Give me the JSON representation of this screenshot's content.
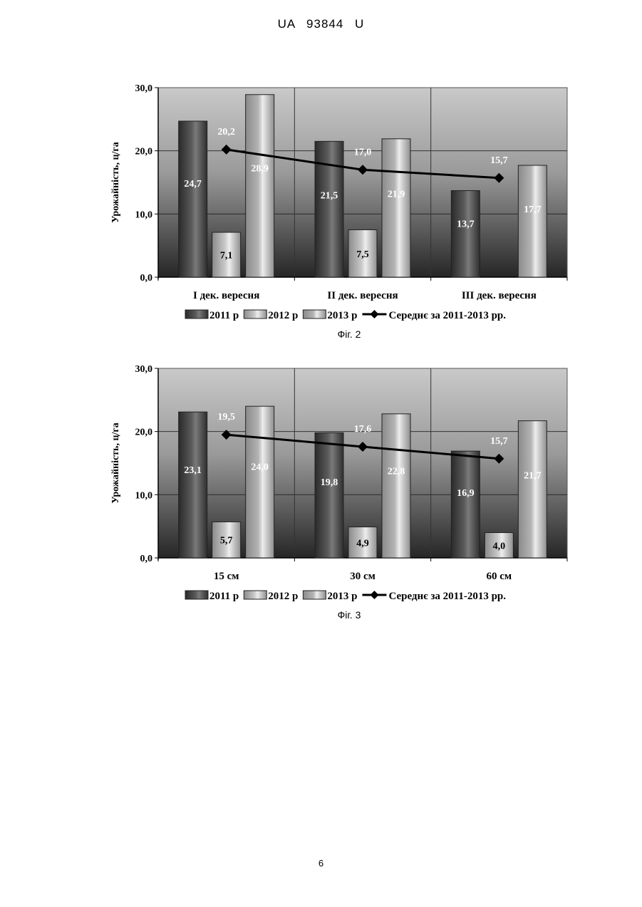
{
  "document": {
    "header": "UA 93844 U",
    "page_number": "6"
  },
  "chart_data": [
    {
      "type": "bar",
      "caption": "Фіг. 2",
      "ylabel": "Урожайність, ц/га",
      "ylim": [
        0,
        30
      ],
      "yticks": [
        "0,0",
        "10,0",
        "20,0",
        "30,0"
      ],
      "categories": [
        "I дек. вересня",
        "II дек. вересня",
        "III дек. вересня"
      ],
      "series": [
        {
          "name": "2011 р",
          "kind": "bar",
          "color": "#5a5a5a",
          "values": [
            24.7,
            21.5,
            13.7
          ],
          "labels": [
            "24,7",
            "21,5",
            "13,7"
          ]
        },
        {
          "name": "2012 р",
          "kind": "bar",
          "color": "#c8c8c8",
          "values": [
            7.1,
            7.5,
            null
          ],
          "labels": [
            "7,1",
            "7,5",
            ""
          ]
        },
        {
          "name": "2013 р",
          "kind": "bar",
          "color": "#b4b4b4",
          "values": [
            28.9,
            21.9,
            17.7
          ],
          "labels": [
            "28,9",
            "21,9",
            "17,7"
          ]
        },
        {
          "name": "Середнє за 2011-2013 рр.",
          "kind": "line",
          "color": "#000000",
          "values": [
            20.2,
            17.0,
            15.7
          ],
          "labels": [
            "20,2",
            "17,0",
            "15,7"
          ]
        }
      ],
      "grid": true,
      "legend": "bottom"
    },
    {
      "type": "bar",
      "caption": "Фіг. 3",
      "ylabel": "Урожайність, ц/га",
      "ylim": [
        0,
        30
      ],
      "yticks": [
        "0,0",
        "10,0",
        "20,0",
        "30,0"
      ],
      "categories": [
        "15 см",
        "30 см",
        "60 см"
      ],
      "series": [
        {
          "name": "2011 р",
          "kind": "bar",
          "color": "#5a5a5a",
          "values": [
            23.1,
            19.8,
            16.9
          ],
          "labels": [
            "23,1",
            "19,8",
            "16,9"
          ]
        },
        {
          "name": "2012 р",
          "kind": "bar",
          "color": "#c8c8c8",
          "values": [
            5.7,
            4.9,
            4.0
          ],
          "labels": [
            "5,7",
            "4,9",
            "4,0"
          ]
        },
        {
          "name": "2013 р",
          "kind": "bar",
          "color": "#b4b4b4",
          "values": [
            24.0,
            22.8,
            21.7
          ],
          "labels": [
            "24,0",
            "22,8",
            "21,7"
          ]
        },
        {
          "name": "Середнє за 2011-2013 рр.",
          "kind": "line",
          "color": "#000000",
          "values": [
            19.5,
            17.6,
            15.7
          ],
          "labels": [
            "19,5",
            "17,6",
            "15,7"
          ]
        }
      ],
      "grid": true,
      "legend": "bottom"
    }
  ]
}
